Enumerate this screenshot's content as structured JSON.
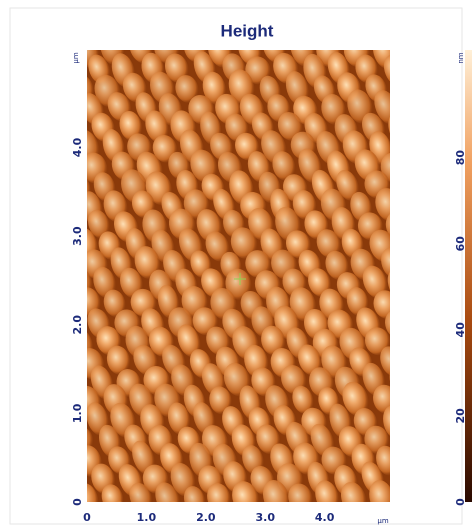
{
  "chart_data": {
    "type": "image",
    "title": "Height",
    "x_unit": "µm",
    "y_unit": "µm",
    "colorbar_unit": "nm",
    "xlim": [
      0,
      5.1
    ],
    "ylim": [
      0,
      5.1
    ],
    "xticks": [
      0,
      {
        "value": 1,
        "label": "1.0"
      },
      {
        "value": 2,
        "label": "2.0"
      },
      {
        "value": 3,
        "label": "3.0"
      },
      {
        "value": 4,
        "label": "4.0"
      }
    ],
    "yticks": [
      0,
      {
        "value": 1,
        "label": "1.0"
      },
      {
        "value": 2,
        "label": "2.0"
      },
      {
        "value": 3,
        "label": "3.0"
      },
      {
        "value": 4,
        "label": "4.0"
      }
    ],
    "colorbar_lim": [
      0,
      105
    ],
    "colorbar_ticks": [
      0,
      20,
      40,
      60,
      80
    ]
  }
}
